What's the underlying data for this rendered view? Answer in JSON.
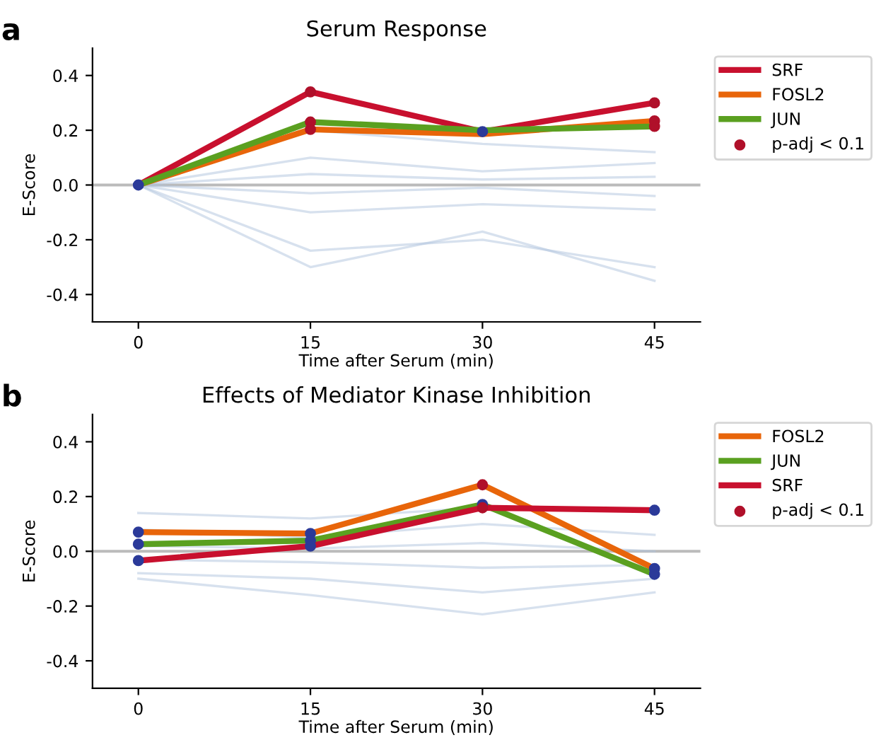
{
  "chart_data": [
    {
      "type": "line",
      "title": "Serum Response",
      "xlabel": "Time after Serum (min)",
      "ylabel": "E-Score",
      "annotations": [
        "a"
      ],
      "x": [
        0,
        15,
        30,
        45
      ],
      "xlim": [
        -4,
        49
      ],
      "xticks": [
        0,
        15,
        30,
        45
      ],
      "ylim": [
        -0.5,
        0.5
      ],
      "yticks": [
        {
          "value": -0.4,
          "label": "-0.4"
        },
        {
          "value": -0.2,
          "label": "-0.2"
        },
        {
          "value": 0,
          "label": "0.0"
        },
        {
          "value": 0.2,
          "label": "0.2"
        },
        {
          "value": 0.4,
          "label": "0.4"
        }
      ],
      "grid": false,
      "legend": "top right",
      "marker": "none",
      "ref_lines": [
        {
          "axis": "y",
          "value": 0,
          "color": "#bbbbbb"
        }
      ],
      "series": [
        {
          "color": "#b0c4de",
          "values": [
            0,
            0.2,
            0.15,
            0.12
          ]
        },
        {
          "color": "#b0c4de",
          "values": [
            0,
            0.1,
            0.05,
            0.08
          ]
        },
        {
          "color": "#b0c4de",
          "values": [
            0,
            0.04,
            0.02,
            0.03
          ]
        },
        {
          "color": "#b0c4de",
          "values": [
            0,
            -0.03,
            -0.01,
            -0.04
          ]
        },
        {
          "color": "#b0c4de",
          "values": [
            0,
            -0.1,
            -0.07,
            -0.09
          ]
        },
        {
          "color": "#b0c4de",
          "values": [
            0,
            -0.24,
            -0.2,
            -0.3
          ]
        },
        {
          "color": "#b0c4de",
          "values": [
            0,
            -0.3,
            -0.17,
            -0.35
          ]
        },
        {
          "name": "SRF",
          "color": "#c8102e",
          "values": [
            0,
            0.34,
            0.195,
            0.3
          ]
        },
        {
          "name": "FOSL2",
          "color": "#e8650a",
          "values": [
            0,
            0.203,
            0.186,
            0.234
          ]
        },
        {
          "name": "JUN",
          "color": "#5aa020",
          "values": [
            0,
            0.23,
            0.2,
            0.214
          ]
        },
        {
          "type": "scatter",
          "color": "#2b3a99",
          "marker": "circle",
          "x": [
            0,
            30
          ],
          "values": [
            0,
            0.195
          ]
        },
        {
          "type": "scatter",
          "name": "p-adj < 0.1",
          "color": "#b0102a",
          "marker": "circle",
          "x": [
            15,
            15,
            15,
            45,
            45,
            45
          ],
          "values": [
            0.34,
            0.23,
            0.203,
            0.3,
            0.234,
            0.214
          ]
        }
      ]
    },
    {
      "type": "line",
      "title": "Effects of Mediator Kinase Inhibition",
      "xlabel": "Time after Serum (min)",
      "ylabel": "E-Score",
      "annotations": [
        "b"
      ],
      "x": [
        0,
        15,
        30,
        45
      ],
      "xlim": [
        -4,
        49
      ],
      "xticks": [
        0,
        15,
        30,
        45
      ],
      "ylim": [
        -0.5,
        0.5
      ],
      "yticks": [
        {
          "value": -0.4,
          "label": "-0.4"
        },
        {
          "value": -0.2,
          "label": "-0.2"
        },
        {
          "value": 0,
          "label": "0.0"
        },
        {
          "value": 0.2,
          "label": "0.2"
        },
        {
          "value": 0.4,
          "label": "0.4"
        }
      ],
      "grid": false,
      "legend": "top right",
      "marker": "none",
      "ref_lines": [
        {
          "axis": "y",
          "value": 0,
          "color": "#bbbbbb"
        }
      ],
      "series": [
        {
          "color": "#b0c4de",
          "values": [
            0.14,
            0.12,
            0.16,
            0.15
          ]
        },
        {
          "color": "#b0c4de",
          "values": [
            0.08,
            0.05,
            0.1,
            0.06
          ]
        },
        {
          "color": "#b0c4de",
          "values": [
            0.02,
            0.01,
            0.03,
            0.0
          ]
        },
        {
          "color": "#b0c4de",
          "values": [
            -0.03,
            -0.04,
            -0.06,
            -0.05
          ]
        },
        {
          "color": "#b0c4de",
          "values": [
            -0.08,
            -0.1,
            -0.15,
            -0.1
          ]
        },
        {
          "color": "#b0c4de",
          "values": [
            -0.1,
            -0.16,
            -0.23,
            -0.15
          ]
        },
        {
          "name": "FOSL2",
          "color": "#e8650a",
          "values": [
            0.07,
            0.065,
            0.243,
            -0.063
          ]
        },
        {
          "name": "JUN",
          "color": "#5aa020",
          "values": [
            0.026,
            0.039,
            0.171,
            -0.084
          ]
        },
        {
          "name": "SRF",
          "color": "#c8102e",
          "values": [
            -0.034,
            0.019,
            0.159,
            0.15
          ]
        },
        {
          "type": "scatter",
          "color": "#2b3a99",
          "marker": "circle",
          "x": [
            0,
            0,
            0,
            15,
            15,
            15,
            30,
            45,
            45,
            45
          ],
          "values": [
            0.07,
            0.026,
            -0.034,
            0.065,
            0.039,
            0.019,
            0.171,
            -0.063,
            -0.084,
            0.15
          ]
        },
        {
          "type": "scatter",
          "name": "p-adj < 0.1",
          "color": "#b0102a",
          "marker": "circle",
          "x": [
            30,
            30
          ],
          "values": [
            0.243,
            0.159
          ]
        }
      ]
    }
  ]
}
